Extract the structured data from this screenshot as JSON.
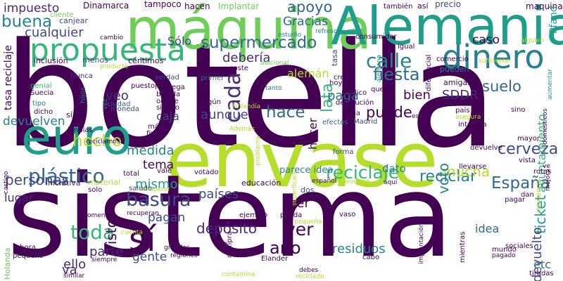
{
  "background": "#ffffff",
  "palette": {
    "dark_purple": "#440154",
    "purple": "#482878",
    "indigo": "#3e4989",
    "blue": "#31688e",
    "teal": "#26828e",
    "green_teal": "#1f9e89",
    "green": "#35b779",
    "light_green": "#6ece58",
    "yellow_green": "#b5de2b"
  },
  "words": [
    {
      "text": "botella",
      "color": "#440154"
    },
    {
      "text": "envase",
      "color": "#b5de2b"
    },
    {
      "text": "sistema",
      "color": "#440154"
    },
    {
      "text": "euro",
      "color": "#1f9e89"
    },
    {
      "text": "máquina",
      "color": "#6ece58"
    },
    {
      "text": "Alemania",
      "color": "#1f9e89"
    },
    {
      "text": "propuesta",
      "color": "#35b779"
    },
    {
      "text": "dinero",
      "color": "#26828e"
    },
    {
      "text": "supermercado",
      "color": "#31688e"
    },
    {
      "text": "calle",
      "color": "#26828e"
    },
    {
      "text": "fiesta",
      "color": "#31688e"
    },
    {
      "text": "reciclaje",
      "color": "#35b779"
    },
    {
      "text": "España",
      "color": "#31688e"
    },
    {
      "text": "plástico",
      "color": "#31688e"
    },
    {
      "text": "sí",
      "color": "#440154"
    },
    {
      "text": "basura",
      "color": "#3e4989"
    },
    {
      "text": "hace",
      "color": "#31688e"
    },
    {
      "text": "cada",
      "color": "#482878"
    },
    {
      "text": "cerveza",
      "color": "#3e4989"
    },
    {
      "text": "toda",
      "color": "#35b779"
    },
    {
      "text": "puede",
      "color": "#440154"
    },
    {
      "text": "ver",
      "color": "#440154"
    },
    {
      "text": "año",
      "color": "#440154"
    },
    {
      "text": "depósito",
      "color": "#482878"
    },
    {
      "text": "reciclar",
      "color": "#26828e"
    },
    {
      "text": "buena",
      "color": "#26828e"
    },
    {
      "text": "apoyo",
      "color": "#31688e"
    },
    {
      "text": "hecho",
      "color": "#b5de2b"
    },
    {
      "text": "mucha",
      "color": "#b5de2b"
    },
    {
      "text": "personas",
      "color": "#3e4989"
    },
    {
      "text": "residuos",
      "color": "#26828e"
    },
    {
      "text": "ticket",
      "color": "#1f9e89"
    },
    {
      "text": "devuelto",
      "color": "#3e4989"
    },
    {
      "text": "ayuntamiento",
      "color": "#35b779"
    },
    {
      "text": "impuesto",
      "color": "#482878"
    },
    {
      "text": "cualquier",
      "color": "#3e4989"
    },
    {
      "text": "Gracias",
      "color": "#31688e"
    },
    {
      "text": "Sólo",
      "color": "#3e4989"
    },
    {
      "text": "debería",
      "color": "#482878"
    },
    {
      "text": "lata",
      "color": "#35b779"
    },
    {
      "text": "caso",
      "color": "#440154"
    },
    {
      "text": "bien",
      "color": "#440154"
    },
    {
      "text": "SDDR",
      "color": "#482878"
    },
    {
      "text": "suelo",
      "color": "#31688e"
    },
    {
      "text": "paga",
      "color": "#31688e"
    },
    {
      "text": "veo",
      "color": "#482878"
    },
    {
      "text": "caja",
      "color": "#3e4989"
    },
    {
      "text": "aunque",
      "color": "#3e4989"
    },
    {
      "text": "medida",
      "color": "#26828e"
    },
    {
      "text": "tema",
      "color": "#440154"
    },
    {
      "text": "mismo",
      "color": "#1f9e89"
    },
    {
      "text": "países",
      "color": "#3e4989"
    },
    {
      "text": "pagan",
      "color": "#3e4989"
    },
    {
      "text": "gente",
      "color": "#3e4989"
    },
    {
      "text": "parte",
      "color": "#482878"
    },
    {
      "text": "ello",
      "color": "#482878"
    },
    {
      "text": "idea",
      "color": "#31688e"
    },
    {
      "text": "va",
      "color": "#482878"
    },
    {
      "text": "etc",
      "color": "#31688e"
    },
    {
      "text": "devuelven",
      "color": "#26828e"
    },
    {
      "text": "lugar",
      "color": "#482878"
    },
    {
      "text": "visto",
      "color": "#440154"
    },
    {
      "text": "voto",
      "color": "#26828e"
    },
    {
      "text": "ser",
      "color": "#440154"
    },
    {
      "text": "hacer",
      "color": "#440154"
    },
    {
      "text": "dato",
      "color": "#26828e"
    },
    {
      "text": "alemán",
      "color": "#b5de2b"
    },
    {
      "text": "Dinamarca",
      "color": "#440154"
    },
    {
      "text": "tampoco",
      "color": "#440154"
    },
    {
      "text": "hacen",
      "color": "#440154"
    },
    {
      "text": "Implantar",
      "color": "#6ece58"
    },
    {
      "text": "precio",
      "color": "#3e4989"
    },
    {
      "text": "maquina",
      "color": "#440154"
    },
    {
      "text": "Pfand",
      "color": "#1f9e89"
    },
    {
      "text": "cliente",
      "color": "#6ece58"
    },
    {
      "text": "canjear",
      "color": "#3e4989"
    },
    {
      "text": "también",
      "color": "#440154"
    },
    {
      "text": "así",
      "color": "#440154"
    },
    {
      "text": "cambio",
      "color": "#440154"
    },
    {
      "text": "estudio",
      "color": "#26828e"
    },
    {
      "text": "refresco",
      "color": "#26828e"
    },
    {
      "text": "consumidor",
      "color": "#440154"
    },
    {
      "text": "menos",
      "color": "#3e4989"
    },
    {
      "text": "inclusión",
      "color": "#440154"
    },
    {
      "text": "Nunca",
      "color": "#482878"
    },
    {
      "text": "céntimos",
      "color": "#440154"
    },
    {
      "text": "igual",
      "color": "#440154"
    },
    {
      "text": "comercio",
      "color": "#440154"
    },
    {
      "text": "pueden",
      "color": "#26828e"
    },
    {
      "text": "suficiente",
      "color": "#b5de2b"
    },
    {
      "text": "alguien",
      "color": "#b5de2b"
    },
    {
      "text": "producto",
      "color": "#b5de2b"
    },
    {
      "text": "diferencial",
      "color": "#440154"
    },
    {
      "text": "alemana",
      "color": "#1f9e89"
    },
    {
      "text": "adicional",
      "color": "#6ece58"
    },
    {
      "text": "amigas",
      "color": "#440154"
    },
    {
      "text": "aumentar",
      "color": "#1f9e89"
    },
    {
      "text": "tasa reciclaje",
      "color": "#440154"
    },
    {
      "text": "tasa",
      "color": "#3e4989"
    },
    {
      "text": "coste",
      "color": "#440154"
    },
    {
      "text": "creo",
      "color": "#440154"
    },
    {
      "text": "hoy",
      "color": "#440154"
    },
    {
      "text": "queda",
      "color": "#440154"
    },
    {
      "text": "verdad",
      "color": "#3e4989"
    },
    {
      "text": "primer",
      "color": "#31688e"
    },
    {
      "text": "tanto",
      "color": "#26828e"
    },
    {
      "text": "genial",
      "color": "#35b779"
    },
    {
      "text": "puesto",
      "color": "#440154"
    },
    {
      "text": "Noruega",
      "color": "#440154"
    },
    {
      "text": "bebida",
      "color": "#440154"
    },
    {
      "text": "ocurre",
      "color": "#440154"
    },
    {
      "text": "siendo",
      "color": "#440154"
    },
    {
      "text": "algún",
      "color": "#440154"
    },
    {
      "text": "Finlandia",
      "color": "#b5de2b"
    },
    {
      "text": "devolución",
      "color": "#440154"
    },
    {
      "text": "público",
      "color": "#440154"
    },
    {
      "text": "alto",
      "color": "#440154"
    },
    {
      "text": "país",
      "color": "#440154"
    },
    {
      "text": "agua",
      "color": "#440154"
    },
    {
      "text": "Madrid",
      "color": "#3e4989"
    },
    {
      "text": "esta",
      "color": "#440154"
    },
    {
      "text": "efectos",
      "color": "#31688e"
    },
    {
      "text": "asegura",
      "color": "#b5de2b"
    },
    {
      "text": "interesa",
      "color": "#440154"
    },
    {
      "text": "Suecia",
      "color": "#440154"
    },
    {
      "text": "tipo",
      "color": "#26828e"
    },
    {
      "text": "dicho",
      "color": "#440154"
    },
    {
      "text": "hijos",
      "color": "#26828e"
    },
    {
      "text": "ciudad",
      "color": "#31688e"
    },
    {
      "text": "moneda",
      "color": "#3e4989"
    },
    {
      "text": "vez",
      "color": "#26828e"
    },
    {
      "text": "sí",
      "color": "#440154"
    },
    {
      "text": "limpias",
      "color": "#440154"
    },
    {
      "text": "más",
      "color": "#440154"
    },
    {
      "text": "final",
      "color": "#440154"
    },
    {
      "text": "Además",
      "color": "#b5de2b"
    },
    {
      "text": "reciclamos",
      "color": "#440154"
    },
    {
      "text": "sino",
      "color": "#440154"
    },
    {
      "text": "domésticos",
      "color": "#440154"
    },
    {
      "text": "mayor",
      "color": "#440154"
    },
    {
      "text": "vista",
      "color": "#440154"
    },
    {
      "text": "ve",
      "color": "#440154"
    },
    {
      "text": "rotas",
      "color": "#440154"
    },
    {
      "text": "mejora",
      "color": "#440154"
    },
    {
      "text": "devuelve",
      "color": "#440154"
    },
    {
      "text": "llevarse",
      "color": "#440154"
    },
    {
      "text": "forma",
      "color": "#3e4989"
    },
    {
      "text": "problema",
      "color": "#b5de2b"
    },
    {
      "text": "superficies",
      "color": "#b5de2b"
    },
    {
      "text": "castigo",
      "color": "#440154"
    },
    {
      "text": "total",
      "color": "#440154"
    },
    {
      "text": "vale",
      "color": "#440154"
    },
    {
      "text": "votado",
      "color": "#440154"
    },
    {
      "text": "recuperar",
      "color": "#b5de2b"
    },
    {
      "text": "parece idea",
      "color": "#26828e"
    },
    {
      "text": "educación",
      "color": "#440154"
    },
    {
      "text": "español",
      "color": "#440154"
    },
    {
      "text": "devolver",
      "color": "#b5de2b"
    },
    {
      "text": "aquí",
      "color": "#440154"
    },
    {
      "text": "pagar",
      "color": "#440154"
    },
    {
      "text": "dan",
      "color": "#440154"
    },
    {
      "text": "conciencia",
      "color": "#b5de2b"
    },
    {
      "text": "iniciativa",
      "color": "#482878"
    },
    {
      "text": "material",
      "color": "#b5de2b"
    },
    {
      "text": "saludo",
      "color": "#3e4989"
    },
    {
      "text": "solo",
      "color": "#440154"
    },
    {
      "text": "dos",
      "color": "#3e4989"
    },
    {
      "text": "comenta",
      "color": "#440154"
    },
    {
      "text": "recuperan",
      "color": "#440154"
    },
    {
      "text": "cuenta",
      "color": "#b5de2b"
    },
    {
      "text": "haber",
      "color": "#440154"
    },
    {
      "text": "ejemplo",
      "color": "#440154"
    },
    {
      "text": "pueda",
      "color": "#440154"
    },
    {
      "text": "pequeña",
      "color": "#b5de2b"
    },
    {
      "text": "cantidad",
      "color": "#440154"
    },
    {
      "text": "vaso",
      "color": "#440154"
    },
    {
      "text": "usado",
      "color": "#440154"
    },
    {
      "text": "mientras",
      "color": "#440154"
    },
    {
      "text": "sociales",
      "color": "#440154"
    },
    {
      "text": "ahora",
      "color": "#440154"
    },
    {
      "text": "pequeño",
      "color": "#440154"
    },
    {
      "text": "Holanda",
      "color": "#6ece58"
    },
    {
      "text": "siempre",
      "color": "#440154"
    },
    {
      "text": "grandes",
      "color": "#440154"
    },
    {
      "text": "regiones",
      "color": "#440154"
    },
    {
      "text": "da",
      "color": "#440154"
    },
    {
      "text": "compra",
      "color": "#440154"
    },
    {
      "text": "Elander",
      "color": "#440154"
    },
    {
      "text": "cabo",
      "color": "#440154"
    },
    {
      "text": "implantación",
      "color": "#440154"
    },
    {
      "text": "mundo",
      "color": "#440154"
    },
    {
      "text": "pagado",
      "color": "#440154"
    },
    {
      "text": "similar",
      "color": "#440154"
    },
    {
      "text": "contamina",
      "color": "#b5de2b"
    },
    {
      "text": "debes",
      "color": "#440154"
    },
    {
      "text": "reciclado",
      "color": "#b5de2b"
    },
    {
      "text": "tiradas",
      "color": "#440154"
    }
  ]
}
